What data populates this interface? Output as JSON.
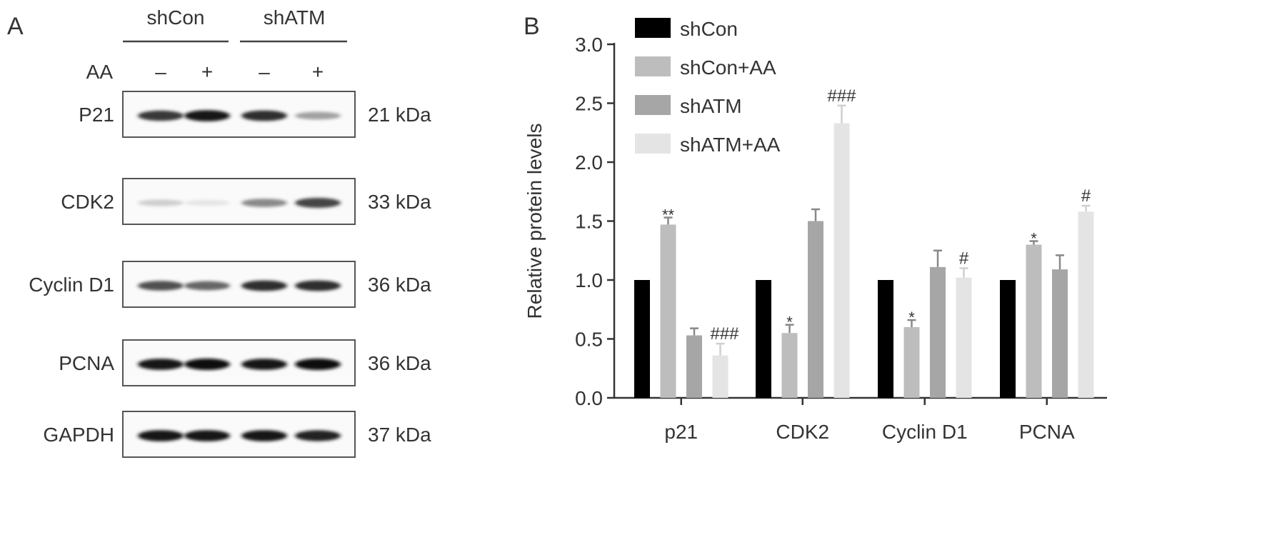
{
  "panel_a": {
    "label": "A",
    "groups": [
      "shCon",
      "shATM"
    ],
    "treatment_label": "AA",
    "treatment_marks": [
      "–",
      "+",
      "–",
      "+"
    ],
    "blots": [
      {
        "protein": "P21",
        "size": "21 kDa",
        "band_intensity": [
          0.8,
          0.95,
          0.85,
          0.35
        ]
      },
      {
        "protein": "CDK2",
        "size": "33 kDa",
        "band_intensity": [
          0.15,
          0.05,
          0.45,
          0.75
        ]
      },
      {
        "protein": "Cyclin D1",
        "size": "36 kDa",
        "band_intensity": [
          0.7,
          0.6,
          0.85,
          0.85
        ]
      },
      {
        "protein": "PCNA",
        "size": "36 kDa",
        "band_intensity": [
          0.95,
          1.0,
          0.95,
          1.0
        ]
      },
      {
        "protein": "GAPDH",
        "size": "37 kDa",
        "band_intensity": [
          0.95,
          0.95,
          0.95,
          0.9
        ]
      }
    ]
  },
  "panel_b": {
    "label": "B"
  },
  "chart_data": {
    "type": "bar",
    "title": "",
    "xlabel": "",
    "ylabel": "Relative protein levels",
    "ylim": [
      0,
      3.0
    ],
    "yticks": [
      "0.0",
      "0.5",
      "1.0",
      "1.5",
      "2.0",
      "2.5",
      "3.0"
    ],
    "grid": false,
    "legend_placement": "top-left",
    "categories": [
      "p21",
      "CDK2",
      "Cyclin D1",
      "PCNA"
    ],
    "series": [
      {
        "name": "shCon",
        "color": "#000000",
        "values": [
          1.0,
          1.0,
          1.0,
          1.0
        ],
        "errors": [
          0,
          0,
          0,
          0
        ],
        "annotations": [
          "",
          "",
          "",
          ""
        ]
      },
      {
        "name": "shCon+AA",
        "color": "#bdbdbd",
        "values": [
          1.47,
          0.55,
          0.6,
          1.3
        ],
        "errors": [
          0.06,
          0.07,
          0.06,
          0.03
        ],
        "annotations": [
          "**",
          "*",
          "*",
          "*"
        ]
      },
      {
        "name": "shATM",
        "color": "#a6a6a6",
        "values": [
          0.53,
          1.5,
          1.11,
          1.09
        ],
        "errors": [
          0.06,
          0.1,
          0.14,
          0.12
        ],
        "annotations": [
          "",
          "",
          "",
          ""
        ]
      },
      {
        "name": "shATM+AA",
        "color": "#e4e4e4",
        "values": [
          0.36,
          2.33,
          1.02,
          1.58
        ],
        "errors": [
          0.1,
          0.15,
          0.08,
          0.05
        ],
        "annotations": [
          "###",
          "###",
          "#",
          "#"
        ]
      }
    ]
  }
}
